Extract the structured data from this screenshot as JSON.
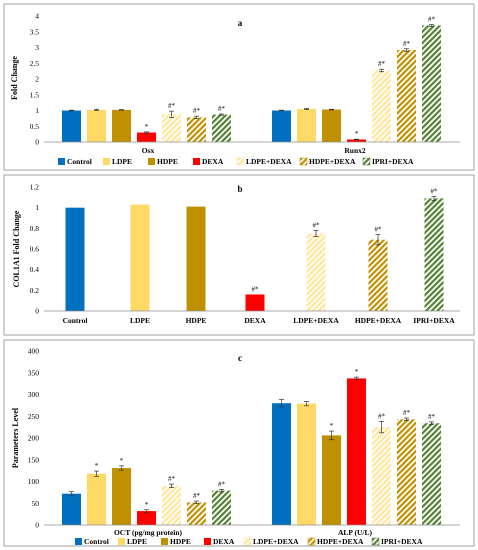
{
  "chart_data": [
    {
      "type": "bar",
      "panel": "a",
      "ylabel": "Fold Change",
      "ylim": [
        0,
        4
      ],
      "yticks": [
        "0",
        "0.5",
        "1",
        "1.5",
        "2",
        "2.5",
        "3",
        "3.5",
        "4"
      ],
      "categories": [
        "Osx",
        "Runx2"
      ],
      "series": [
        {
          "name": "Control",
          "values": [
            1.0,
            1.0
          ],
          "errors": [
            0.01,
            0.01
          ],
          "annotations": [
            "",
            ""
          ]
        },
        {
          "name": "LDPE",
          "values": [
            1.02,
            1.05
          ],
          "errors": [
            0.02,
            0.02
          ],
          "annotations": [
            "",
            ""
          ]
        },
        {
          "name": "HDPE",
          "values": [
            1.02,
            1.03
          ],
          "errors": [
            0.01,
            0.01
          ],
          "annotations": [
            "",
            ""
          ]
        },
        {
          "name": "DEXA",
          "values": [
            0.3,
            0.08
          ],
          "errors": [
            0.02,
            0.01
          ],
          "annotations": [
            "*",
            "*"
          ]
        },
        {
          "name": "LDPE+DEXA",
          "values": [
            0.88,
            2.27
          ],
          "errors": [
            0.1,
            0.04
          ],
          "annotations": [
            "#*",
            "#*"
          ]
        },
        {
          "name": "HDPE+DEXA",
          "values": [
            0.78,
            2.92
          ],
          "errors": [
            0.04,
            0.04
          ],
          "annotations": [
            "#*",
            "#*"
          ]
        },
        {
          "name": "IPRI+DEXA",
          "values": [
            0.87,
            3.7
          ],
          "errors": [
            0.02,
            0.03
          ],
          "annotations": [
            "#*",
            "#*"
          ]
        }
      ],
      "legend_position": "bottom"
    },
    {
      "type": "bar",
      "panel": "b",
      "ylabel": "COL1A1 Fold Change",
      "ylim": [
        0,
        1.2
      ],
      "yticks": [
        "0",
        "0.2",
        "0.4",
        "0.6",
        "0.8",
        "1",
        "1.2"
      ],
      "categories": [
        "Control",
        "LDPE",
        "HDPE",
        "DEXA",
        "LDPE+DEXA",
        "HDPE+DEXA",
        "IPRI+DEXA"
      ],
      "values": [
        1.0,
        1.03,
        1.01,
        0.16,
        0.75,
        0.69,
        1.09
      ],
      "errors": [
        0.0,
        0.0,
        0.0,
        0.0,
        0.03,
        0.05,
        0.02
      ],
      "annotations": [
        "",
        "",
        "",
        "#*",
        "#*",
        "#*",
        "#*"
      ]
    },
    {
      "type": "bar",
      "panel": "c",
      "ylabel": "Parameters Level",
      "ylim": [
        0,
        400
      ],
      "yticks": [
        "0",
        "50",
        "100",
        "150",
        "200",
        "250",
        "300",
        "350",
        "400"
      ],
      "categories": [
        "OCT (pg/mg protein)",
        "ALP (U/L)"
      ],
      "series": [
        {
          "name": "Control",
          "values": [
            72,
            280
          ],
          "errors": [
            5,
            9
          ],
          "annotations": [
            "",
            ""
          ]
        },
        {
          "name": "LDPE",
          "values": [
            118,
            279
          ],
          "errors": [
            6,
            5
          ],
          "annotations": [
            "*",
            ""
          ]
        },
        {
          "name": "HDPE",
          "values": [
            131,
            206
          ],
          "errors": [
            5,
            10
          ],
          "annotations": [
            "*",
            "*"
          ]
        },
        {
          "name": "DEXA",
          "values": [
            32,
            337
          ],
          "errors": [
            3,
            3
          ],
          "annotations": [
            "*",
            "*"
          ]
        },
        {
          "name": "LDPE+DEXA",
          "values": [
            90,
            225
          ],
          "errors": [
            4,
            13
          ],
          "annotations": [
            "#*",
            "#*"
          ]
        },
        {
          "name": "HDPE+DEXA",
          "values": [
            52,
            243
          ],
          "errors": [
            3,
            3
          ],
          "annotations": [
            "#*",
            "#*"
          ]
        },
        {
          "name": "IPRI+DEXA",
          "values": [
            79,
            234
          ],
          "errors": [
            3,
            3
          ],
          "annotations": [
            "#*",
            "#*"
          ]
        }
      ],
      "legend_position": "bottom"
    }
  ],
  "legend_labels": [
    "Control",
    "LDPE",
    "HDPE",
    "DEXA",
    "LDPE+DEXA",
    "HDPE+DEXA",
    "IPRI+DEXA"
  ],
  "series_styles": [
    {
      "color": "#0070c0",
      "pattern": "solid"
    },
    {
      "color": "#ffd966",
      "pattern": "solid"
    },
    {
      "color": "#bf9000",
      "pattern": "solid"
    },
    {
      "color": "#ff0000",
      "pattern": "solid"
    },
    {
      "color": "#ffe699",
      "pattern": "hatch"
    },
    {
      "color": "#bf9000",
      "pattern": "hatch"
    },
    {
      "color": "#548235",
      "pattern": "hatch"
    }
  ]
}
